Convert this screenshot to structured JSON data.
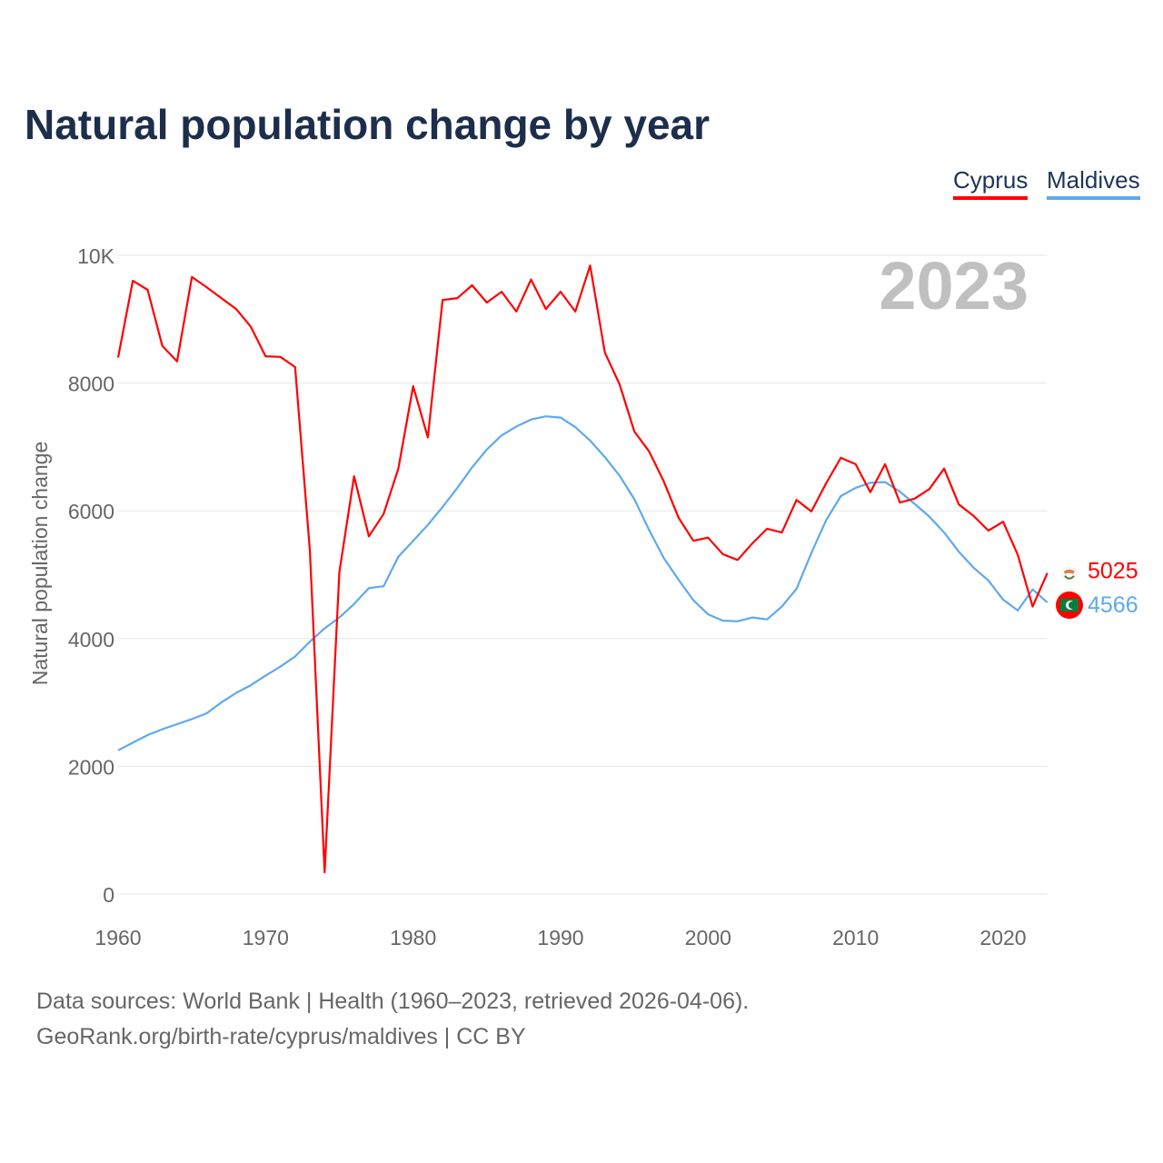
{
  "title": "Natural population change by year",
  "source_line1": "Data sources: World Bank | Health (1960–2023, retrieved 2026-04-06).",
  "source_line2": "GeoRank.org/birth-rate/cyprus/maldives | CC BY",
  "chart_data": {
    "type": "line",
    "title": "Natural population change by year",
    "xlabel": "",
    "ylabel": "Natural population change",
    "xlim": [
      1960,
      2023
    ],
    "ylim": [
      0,
      10000
    ],
    "x_ticks": [
      1960,
      1970,
      1980,
      1990,
      2000,
      2010,
      2020
    ],
    "y_ticks": [
      0,
      2000,
      4000,
      6000,
      8000,
      10000
    ],
    "y_tick_labels": [
      "0",
      "2000",
      "4000",
      "6000",
      "8000",
      "10K"
    ],
    "grid": true,
    "legend_placement": "top-right",
    "year_label": "2023",
    "series": [
      {
        "name": "Cyprus",
        "color": "#ff0000",
        "end_label": "5025",
        "flag": "cyprus-flag",
        "values": [
          8400,
          9600,
          9460,
          8580,
          8340,
          9660,
          9500,
          9330,
          9160,
          8880,
          8420,
          8410,
          8250,
          5390,
          340,
          5040,
          6540,
          5600,
          5950,
          6660,
          7950,
          7150,
          9300,
          9330,
          9530,
          9260,
          9430,
          9120,
          9620,
          9160,
          9430,
          9120,
          9840,
          8480,
          7980,
          7240,
          6930,
          6460,
          5890,
          5530,
          5580,
          5320,
          5230,
          5490,
          5720,
          5660,
          6170,
          5990,
          6430,
          6830,
          6730,
          6290,
          6730,
          6130,
          6190,
          6340,
          6660,
          6100,
          5920,
          5690,
          5830,
          5310,
          4500,
          5025
        ]
      },
      {
        "name": "Maldives",
        "color": "#5ea9ee",
        "end_label": "4566",
        "flag": "maldives-flag",
        "values": [
          2250,
          2370,
          2490,
          2580,
          2660,
          2740,
          2830,
          3000,
          3150,
          3270,
          3420,
          3560,
          3720,
          3950,
          4160,
          4330,
          4540,
          4790,
          4820,
          5280,
          5530,
          5780,
          6060,
          6360,
          6680,
          6960,
          7180,
          7320,
          7430,
          7480,
          7460,
          7310,
          7100,
          6840,
          6550,
          6180,
          5700,
          5260,
          4920,
          4600,
          4380,
          4280,
          4270,
          4330,
          4300,
          4500,
          4780,
          5340,
          5850,
          6230,
          6360,
          6440,
          6450,
          6300,
          6110,
          5910,
          5660,
          5360,
          5110,
          4910,
          4610,
          4440,
          4770,
          4566
        ]
      }
    ]
  }
}
